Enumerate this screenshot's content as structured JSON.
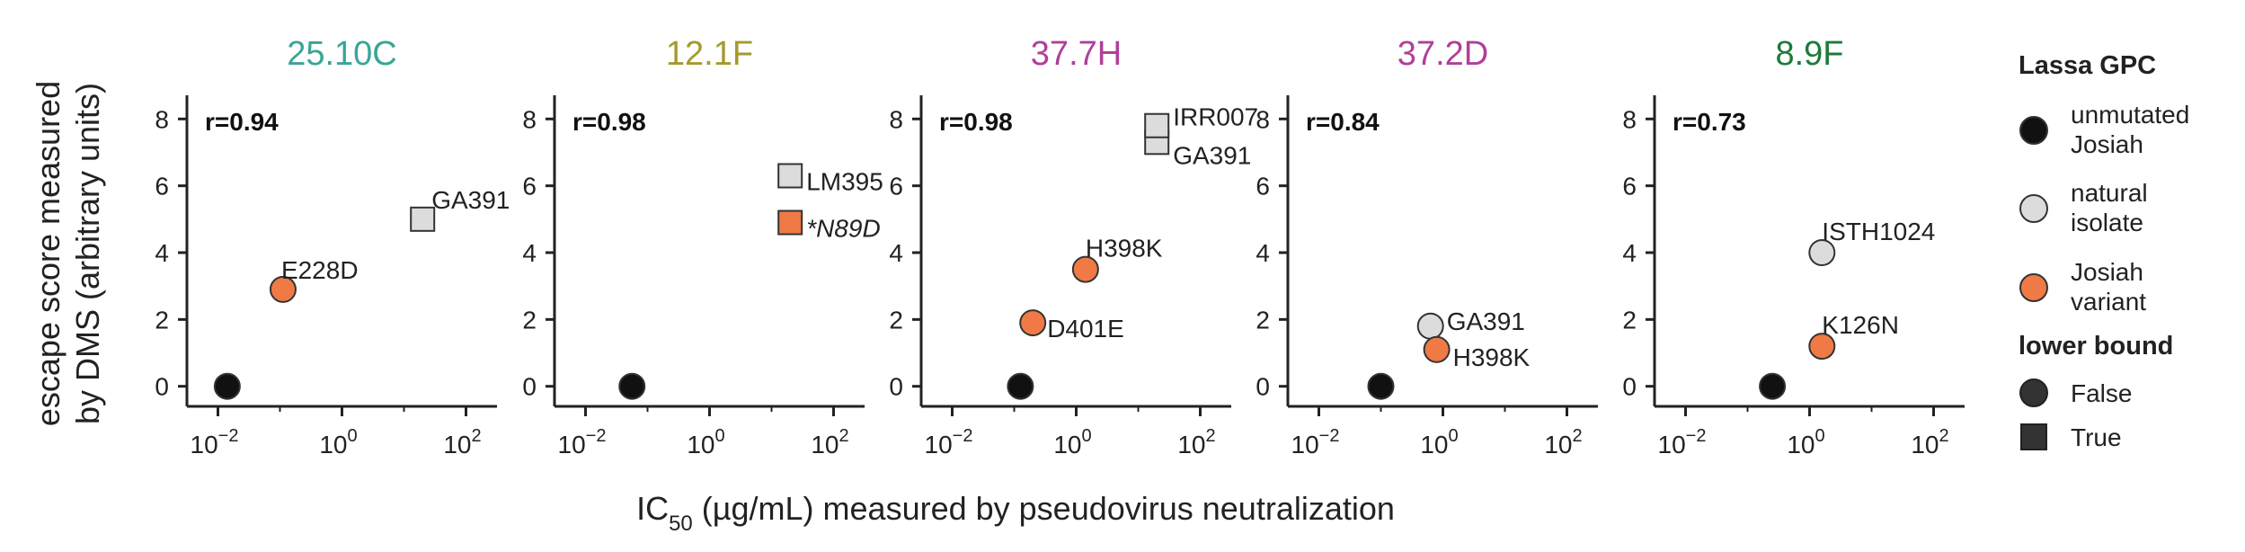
{
  "colors": {
    "axis": "#222222",
    "unmutated": "#111111",
    "natural": "#dcdcdc",
    "variant": "#ef7a45",
    "marker_edge": "#333333"
  },
  "ylabel_lines": [
    "escape score measured",
    "by DMS (arbitrary units)"
  ],
  "xlabel": {
    "main": "IC",
    "sub": "50",
    "rest": " (µg/mL) measured by pseudovirus neutralization"
  },
  "legend": {
    "title1": "Lassa GPC",
    "items1": [
      {
        "lines": [
          "unmutated",
          "Josiah"
        ],
        "kind": "unmutated"
      },
      {
        "lines": [
          "natural",
          "isolate"
        ],
        "kind": "natural"
      },
      {
        "lines": [
          "Josiah",
          "variant"
        ],
        "kind": "variant"
      }
    ],
    "title2": "lower bound",
    "items2": [
      {
        "label": "False",
        "shape": "circle"
      },
      {
        "label": "True",
        "shape": "square"
      }
    ]
  },
  "chart_data": [
    {
      "type": "scatter",
      "title": "25.10C",
      "title_color": "#3aa597",
      "r_label": "r=0.94",
      "xscale": "log",
      "xlim": [
        -2.5,
        2.5
      ],
      "ylim": [
        -0.6,
        8.6
      ],
      "xticks": [
        -2,
        0,
        2
      ],
      "yticks": [
        0,
        2,
        4,
        6,
        8
      ],
      "points": [
        {
          "label": "",
          "x": -1.85,
          "y": 0.0,
          "kind": "unmutated",
          "lower_bound": false
        },
        {
          "label": "E228D",
          "x": -0.95,
          "y": 2.9,
          "kind": "variant",
          "lower_bound": false
        },
        {
          "label": "GA391",
          "x": 1.3,
          "y": 5.0,
          "kind": "natural",
          "lower_bound": true
        }
      ]
    },
    {
      "type": "scatter",
      "title": "12.1F",
      "title_color": "#a39a2d",
      "r_label": "r=0.98",
      "xscale": "log",
      "xlim": [
        -2.5,
        2.5
      ],
      "ylim": [
        -0.6,
        8.6
      ],
      "xticks": [
        -2,
        0,
        2
      ],
      "yticks": [
        0,
        2,
        4,
        6,
        8
      ],
      "points": [
        {
          "label": "",
          "x": -1.25,
          "y": 0.0,
          "kind": "unmutated",
          "lower_bound": false
        },
        {
          "label": "*N89D",
          "x": 1.3,
          "y": 4.9,
          "kind": "variant",
          "lower_bound": true,
          "italic": true
        },
        {
          "label": "LM395",
          "x": 1.3,
          "y": 6.3,
          "kind": "natural",
          "lower_bound": true
        }
      ]
    },
    {
      "type": "scatter",
      "title": "37.7H",
      "title_color": "#b03f9a",
      "r_label": "r=0.98",
      "xscale": "log",
      "xlim": [
        -2.5,
        2.5
      ],
      "ylim": [
        -0.6,
        8.6
      ],
      "xticks": [
        -2,
        0,
        2
      ],
      "yticks": [
        0,
        2,
        4,
        6,
        8
      ],
      "points": [
        {
          "label": "",
          "x": -0.9,
          "y": 0.0,
          "kind": "unmutated",
          "lower_bound": false
        },
        {
          "label": "D401E",
          "x": -0.7,
          "y": 1.9,
          "kind": "variant",
          "lower_bound": false
        },
        {
          "label": "H398K",
          "x": 0.15,
          "y": 3.5,
          "kind": "variant",
          "lower_bound": false
        },
        {
          "label": "GA391",
          "x": 1.3,
          "y": 7.3,
          "kind": "natural",
          "lower_bound": true
        },
        {
          "label": "IRR007",
          "x": 1.3,
          "y": 7.8,
          "kind": "natural",
          "lower_bound": true
        }
      ]
    },
    {
      "type": "scatter",
      "title": "37.2D",
      "title_color": "#b03f9a",
      "r_label": "r=0.84",
      "xscale": "log",
      "xlim": [
        -2.5,
        2.5
      ],
      "ylim": [
        -0.6,
        8.6
      ],
      "xticks": [
        -2,
        0,
        2
      ],
      "yticks": [
        0,
        2,
        4,
        6,
        8
      ],
      "points": [
        {
          "label": "",
          "x": -1.0,
          "y": 0.0,
          "kind": "unmutated",
          "lower_bound": false
        },
        {
          "label": "GA391",
          "x": -0.2,
          "y": 1.8,
          "kind": "natural",
          "lower_bound": false
        },
        {
          "label": "H398K",
          "x": -0.1,
          "y": 1.1,
          "kind": "variant",
          "lower_bound": false
        }
      ]
    },
    {
      "type": "scatter",
      "title": "8.9F",
      "title_color": "#1e7a3a",
      "r_label": "r=0.73",
      "xscale": "log",
      "xlim": [
        -2.5,
        2.5
      ],
      "ylim": [
        -0.6,
        8.6
      ],
      "xticks": [
        -2,
        0,
        2
      ],
      "yticks": [
        0,
        2,
        4,
        6,
        8
      ],
      "points": [
        {
          "label": "",
          "x": -0.6,
          "y": 0.0,
          "kind": "unmutated",
          "lower_bound": false
        },
        {
          "label": "ISTH1024",
          "x": 0.2,
          "y": 4.0,
          "kind": "natural",
          "lower_bound": false
        },
        {
          "label": "K126N",
          "x": 0.2,
          "y": 1.2,
          "kind": "variant",
          "lower_bound": false
        }
      ]
    }
  ]
}
